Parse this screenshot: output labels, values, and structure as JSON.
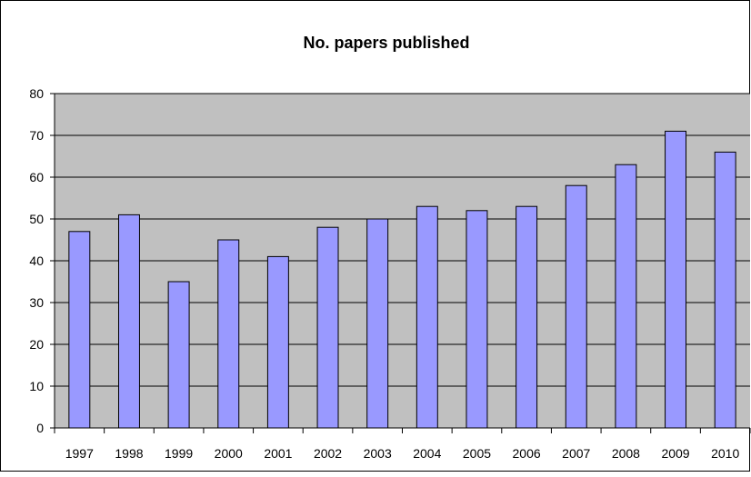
{
  "chart_data": {
    "type": "bar",
    "title": "No. papers published",
    "xlabel": "",
    "ylabel": "",
    "categories": [
      "1997",
      "1998",
      "1999",
      "2000",
      "2001",
      "2002",
      "2003",
      "2004",
      "2005",
      "2006",
      "2007",
      "2008",
      "2009",
      "2010"
    ],
    "values": [
      47,
      51,
      35,
      45,
      41,
      48,
      50,
      53,
      52,
      53,
      58,
      63,
      71,
      66
    ],
    "ylim": [
      0,
      80
    ],
    "yticks": [
      "0",
      "10",
      "20",
      "30",
      "40",
      "50",
      "60",
      "70",
      "80"
    ],
    "grid": true,
    "legend": "none",
    "colors": {
      "bar_fill": "#9999ff",
      "bar_stroke": "#000000",
      "plot_background": "#c0c0c0",
      "gridline": "#000000"
    }
  }
}
